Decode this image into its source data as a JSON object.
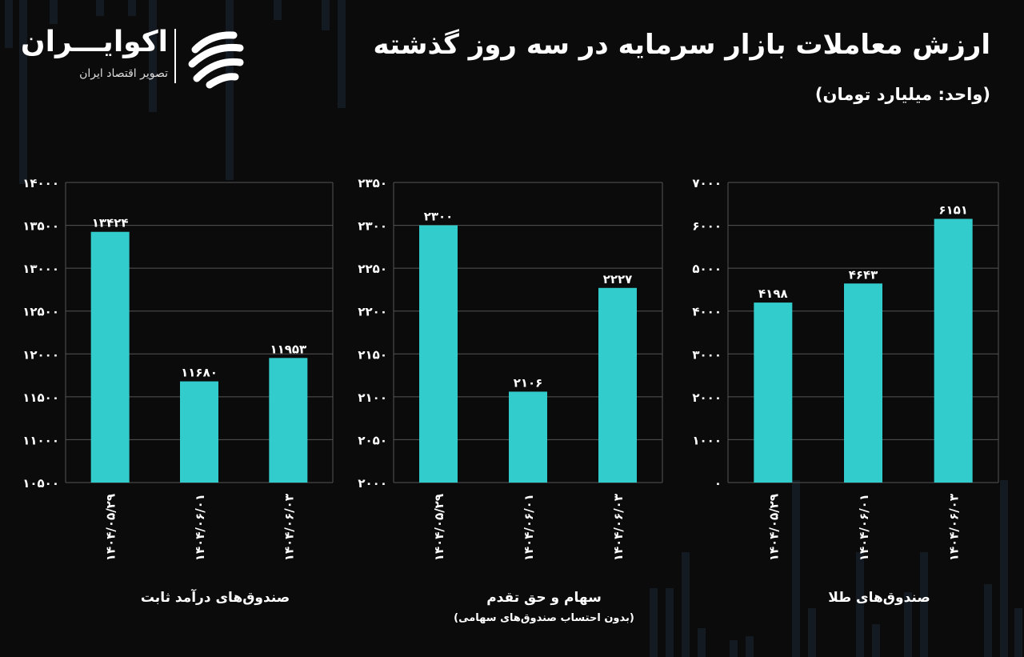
{
  "header": {
    "title": "ارزش معاملات بازار سرمایه در سه روز گذشته",
    "unit": "(واحد: میلیارد تومان)"
  },
  "logo": {
    "name": "اکوایـــران",
    "tagline": "تصویر اقتصاد ایران"
  },
  "colors": {
    "bar": "#33cccc",
    "grid": "#555555",
    "background": "#0b0b0b"
  },
  "chart_data": [
    {
      "type": "bar",
      "title": "صندوق‌های درآمد ثابت",
      "subtitle": "",
      "categories": [
        "۱۴۰۴/۰۵/۲۹",
        "۱۴۰۴/۰۶/۰۱",
        "۱۴۰۴/۰۶/۰۳"
      ],
      "values": [
        13424,
        11680,
        11953
      ],
      "value_labels": [
        "۱۳۴۲۴",
        "۱۱۶۸۰",
        "۱۱۹۵۳"
      ],
      "ylim": [
        10500,
        14000
      ],
      "yticks": [
        10500,
        11000,
        11500,
        12000,
        12500,
        13000,
        13500,
        14000
      ],
      "ytick_labels": [
        "۱۰۵۰۰",
        "۱۱۰۰۰",
        "۱۱۵۰۰",
        "۱۲۰۰۰",
        "۱۲۵۰۰",
        "۱۳۰۰۰",
        "۱۳۵۰۰",
        "۱۴۰۰۰"
      ],
      "grid": true
    },
    {
      "type": "bar",
      "title": "سهام و حق تقدم",
      "subtitle": "(بدون احتساب صندوق‌های سهامی)",
      "categories": [
        "۱۴۰۴/۰۵/۲۹",
        "۱۴۰۴/۰۶/۰۱",
        "۱۴۰۴/۰۶/۰۳"
      ],
      "values": [
        2300,
        2106,
        2227
      ],
      "value_labels": [
        "۲۳۰۰",
        "۲۱۰۶",
        "۲۲۲۷"
      ],
      "ylim": [
        2000,
        2350
      ],
      "yticks": [
        2000,
        2050,
        2100,
        2150,
        2200,
        2250,
        2300,
        2350
      ],
      "ytick_labels": [
        "۲۰۰۰",
        "۲۰۵۰",
        "۲۱۰۰",
        "۲۱۵۰",
        "۲۲۰۰",
        "۲۲۵۰",
        "۲۳۰۰",
        "۲۳۵۰"
      ],
      "grid": true
    },
    {
      "type": "bar",
      "title": "صندوق‌های طلا",
      "subtitle": "",
      "categories": [
        "۱۴۰۴/۰۵/۲۹",
        "۱۴۰۴/۰۶/۰۱",
        "۱۴۰۴/۰۶/۰۳"
      ],
      "values": [
        4198,
        4643,
        6151
      ],
      "value_labels": [
        "۴۱۹۸",
        "۴۶۴۳",
        "۶۱۵۱"
      ],
      "ylim": [
        0,
        7000
      ],
      "yticks": [
        0,
        1000,
        2000,
        3000,
        4000,
        5000,
        6000,
        7000
      ],
      "ytick_labels": [
        "۰",
        "۱۰۰۰",
        "۲۰۰۰",
        "۳۰۰۰",
        "۴۰۰۰",
        "۵۰۰۰",
        "۶۰۰۰",
        "۷۰۰۰"
      ],
      "grid": true
    }
  ]
}
